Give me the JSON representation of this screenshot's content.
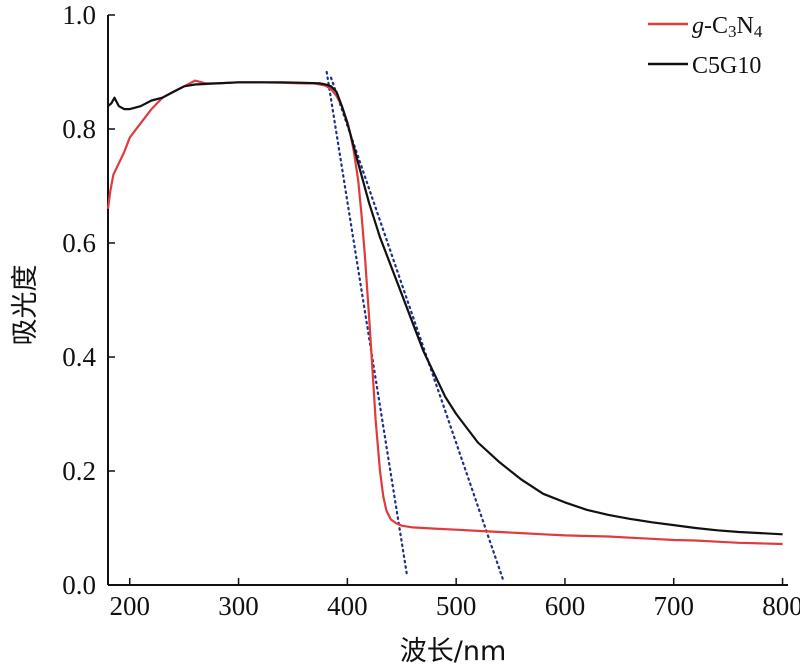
{
  "chart_data": {
    "type": "line",
    "xlabel": "波长/nm",
    "ylabel": "吸光度",
    "xlim": [
      180,
      805
    ],
    "ylim": [
      0.0,
      1.0
    ],
    "xticks": [
      200,
      300,
      400,
      500,
      600,
      700,
      800
    ],
    "yticks": [
      0.0,
      0.2,
      0.4,
      0.6,
      0.8,
      1.0
    ],
    "ytick_labels": [
      "0.0",
      "0.2",
      "0.4",
      "0.6",
      "0.8",
      "1.0"
    ],
    "grid": false,
    "legend_position": "top-right",
    "series": [
      {
        "name": "g-C3N4",
        "legend_parts": [
          {
            "text": "g",
            "style": "italic"
          },
          {
            "text": "-C"
          },
          {
            "text": "3",
            "sub": true
          },
          {
            "text": "N"
          },
          {
            "text": "4",
            "sub": true
          }
        ],
        "color": "#e03a3a",
        "x": [
          180,
          182,
          185,
          190,
          195,
          200,
          210,
          220,
          230,
          240,
          250,
          260,
          270,
          280,
          300,
          320,
          340,
          360,
          370,
          380,
          385,
          390,
          395,
          400,
          403,
          406,
          410,
          413,
          416,
          420,
          423,
          426,
          430,
          433,
          436,
          440,
          445,
          450,
          460,
          470,
          480,
          500,
          520,
          540,
          560,
          580,
          600,
          620,
          640,
          660,
          680,
          700,
          720,
          740,
          760,
          780,
          800
        ],
        "y": [
          0.66,
          0.69,
          0.72,
          0.74,
          0.76,
          0.785,
          0.81,
          0.835,
          0.855,
          0.865,
          0.875,
          0.885,
          0.88,
          0.88,
          0.882,
          0.882,
          0.881,
          0.88,
          0.88,
          0.876,
          0.87,
          0.858,
          0.84,
          0.812,
          0.79,
          0.76,
          0.71,
          0.65,
          0.58,
          0.47,
          0.38,
          0.29,
          0.2,
          0.155,
          0.13,
          0.115,
          0.108,
          0.104,
          0.101,
          0.1,
          0.099,
          0.097,
          0.095,
          0.093,
          0.091,
          0.089,
          0.087,
          0.086,
          0.085,
          0.083,
          0.081,
          0.079,
          0.078,
          0.076,
          0.074,
          0.073,
          0.072
        ]
      },
      {
        "name": "C5G10",
        "color": "#111111",
        "x": [
          180,
          183,
          186,
          190,
          195,
          200,
          210,
          220,
          230,
          240,
          250,
          260,
          280,
          300,
          320,
          340,
          360,
          375,
          380,
          385,
          390,
          395,
          400,
          410,
          420,
          430,
          440,
          450,
          460,
          470,
          480,
          490,
          500,
          520,
          540,
          560,
          580,
          600,
          620,
          640,
          660,
          680,
          700,
          720,
          740,
          760,
          780,
          800
        ],
        "y": [
          0.84,
          0.845,
          0.855,
          0.84,
          0.835,
          0.835,
          0.84,
          0.85,
          0.855,
          0.865,
          0.875,
          0.878,
          0.88,
          0.882,
          0.882,
          0.882,
          0.881,
          0.88,
          0.878,
          0.875,
          0.865,
          0.84,
          0.81,
          0.74,
          0.67,
          0.61,
          0.56,
          0.51,
          0.46,
          0.41,
          0.37,
          0.33,
          0.3,
          0.25,
          0.215,
          0.185,
          0.16,
          0.145,
          0.132,
          0.123,
          0.116,
          0.11,
          0.105,
          0.1,
          0.096,
          0.093,
          0.091,
          0.089
        ]
      }
    ],
    "tangents": [
      {
        "color": "#1f2f8a",
        "x": [
          381,
          455
        ],
        "y": [
          0.9,
          0.015
        ]
      },
      {
        "color": "#1f2f8a",
        "x": [
          385,
          543
        ],
        "y": [
          0.89,
          0.01
        ]
      }
    ]
  }
}
